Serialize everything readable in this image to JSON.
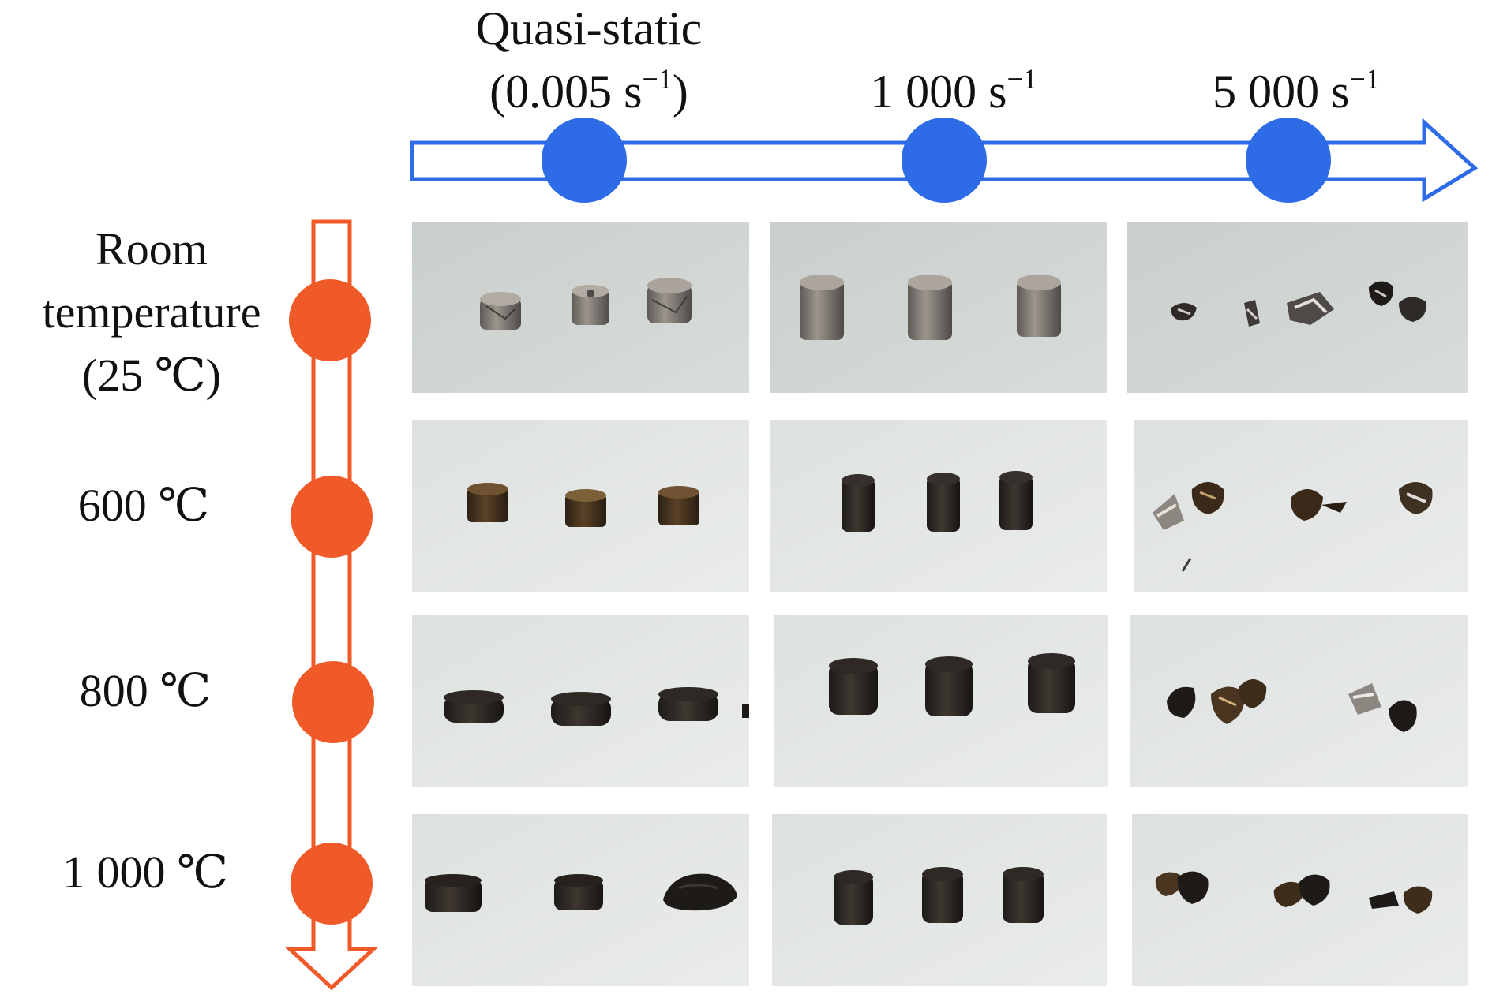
{
  "figure": {
    "strain_rate_axis": {
      "labels": [
        {
          "lines": [
            "Quasi-static",
            "(0.005 s",
            ")"
          ],
          "superscript": "−1"
        },
        {
          "lines": [
            "1 000 s"
          ],
          "superscript": "−1"
        },
        {
          "lines": [
            "5 000 s"
          ],
          "superscript": "−1"
        }
      ],
      "color": "#2e6be6"
    },
    "temperature_axis": {
      "labels": [
        {
          "lines": [
            "Room",
            "temperature",
            "(25 ℃)"
          ]
        },
        {
          "lines": [
            "600 ℃"
          ]
        },
        {
          "lines": [
            "800 ℃"
          ]
        },
        {
          "lines": [
            "1 000 ℃"
          ]
        }
      ],
      "color": "#f05a28"
    },
    "grid": {
      "rows": 4,
      "columns": 3,
      "cells": [
        [
          "Intact squat cylinders, gray",
          "Intact tall cylinders, gray",
          "Fragmented specimens, gray"
        ],
        [
          "Intact short cylinders, dark brown",
          "Intact tall cylinders, black",
          "Fragmented specimens, dark"
        ],
        [
          "Flattened discs, black",
          "Intact tall cylinders, black",
          "Fragmented specimens, dark"
        ],
        [
          "Flattened discs, black",
          "Intact tall cylinders, black",
          "Fragmented specimens, dark"
        ]
      ]
    }
  }
}
